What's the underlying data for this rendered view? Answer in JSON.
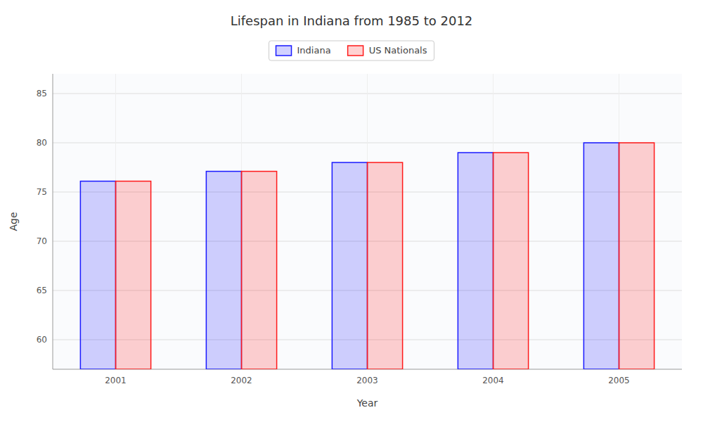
{
  "chart_data": {
    "type": "bar",
    "title": "Lifespan in Indiana from 1985 to 2012",
    "x_label": "Year",
    "y_label": "Age",
    "categories": [
      "2001",
      "2002",
      "2003",
      "2004",
      "2005"
    ],
    "series": [
      {
        "name": "Indiana",
        "color": "#1a1aff",
        "values": [
          76.1,
          77.1,
          78.0,
          79.0,
          80.0
        ]
      },
      {
        "name": "US Nationals",
        "color": "#ff1a1a",
        "values": [
          76.1,
          77.1,
          78.0,
          79.0,
          80.0
        ]
      }
    ],
    "ylim": [
      57,
      87
    ],
    "yticks": [
      60,
      65,
      70,
      75,
      80,
      85
    ],
    "grid": true,
    "legend": "top"
  }
}
